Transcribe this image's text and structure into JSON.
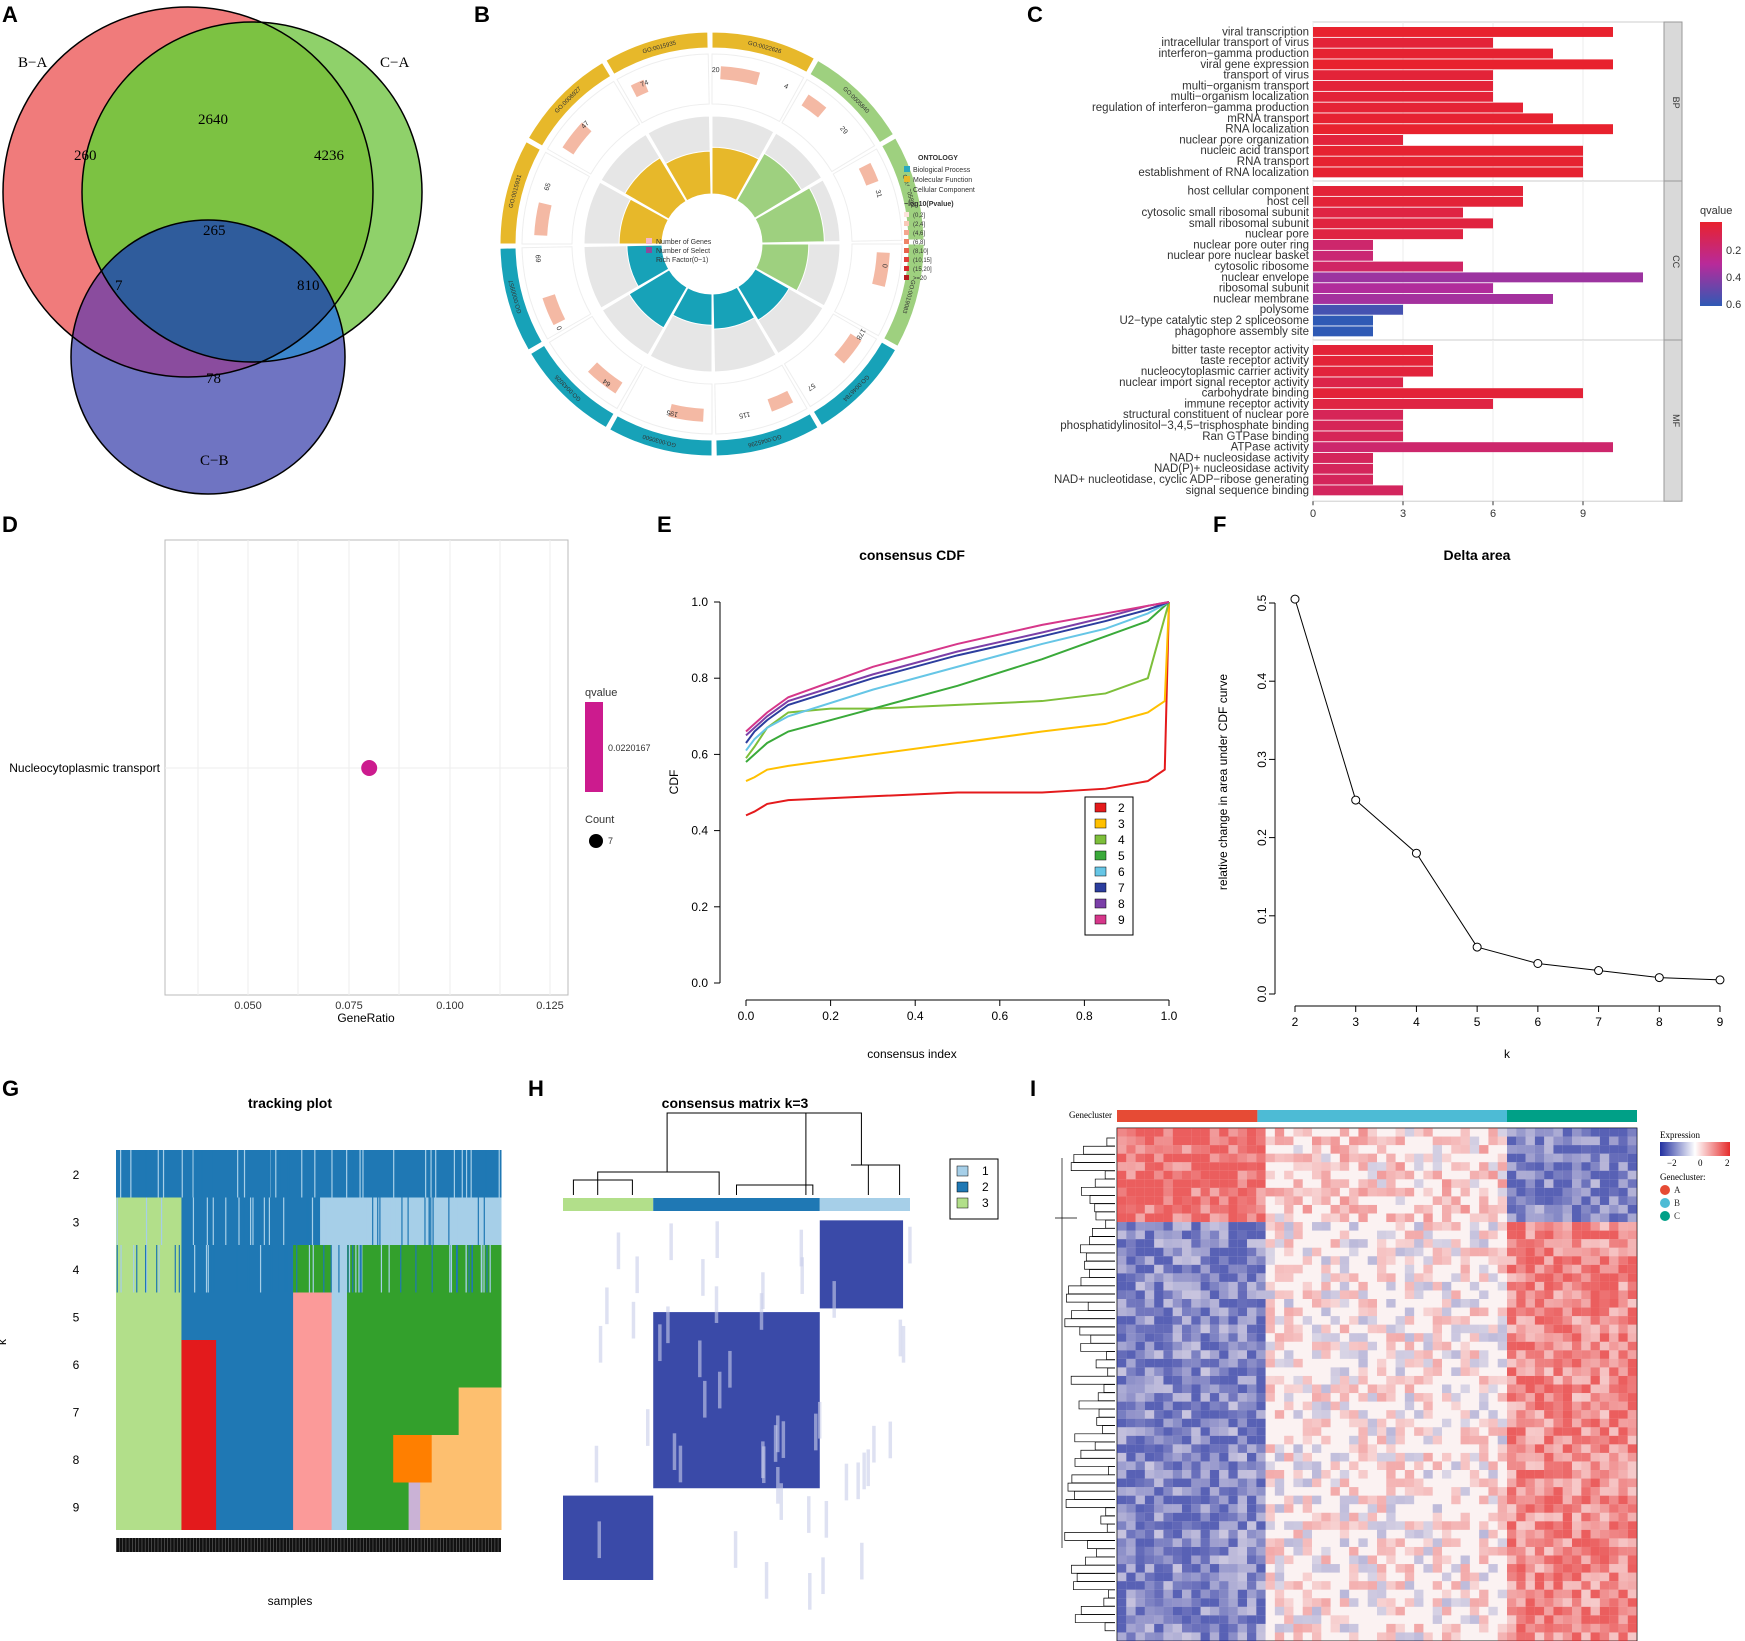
{
  "panels": {
    "A": "A",
    "B": "B",
    "C": "C",
    "D": "D",
    "E": "E",
    "F": "F",
    "G": "G",
    "H": "H",
    "I": "I"
  },
  "colors": {
    "red": "#f07b7b",
    "green": "#8fd16a",
    "blue": "#6f74c2"
  },
  "chart_data": [
    {
      "panel": "A",
      "type": "venn",
      "sets": [
        {
          "name": "B−A"
        },
        {
          "name": "C−A"
        },
        {
          "name": "C−B"
        }
      ],
      "regions": {
        "only_BA": "260",
        "only_CA": "4236",
        "only_CB": "78",
        "BA_CA": "2640",
        "BA_CB": "7",
        "CA_CB": "810",
        "all": "265"
      }
    },
    {
      "panel": "B",
      "type": "circular-go",
      "legend_title": "ONTOLOGY",
      "ontology": [
        "Biological Process",
        "Molecular Function",
        "Cellular Component"
      ],
      "pvalue_title": "−log10(Pvalue)",
      "pvalue_bins": [
        "(0,2]",
        "(2,4]",
        "(4,6]",
        "(6,8]",
        "(8,10]",
        "(10,15]",
        "(15,20]",
        ">=20"
      ],
      "center_legend": [
        "Number of Genes",
        "Number of Select",
        "Rich Factor(0~1)"
      ],
      "go_terms": [
        "GO:0015935",
        "GO:0022626",
        "GO:0005840",
        "GO:0005881",
        "GO:0019083",
        "GO:0046784",
        "GO:0045296",
        "GO:0030500",
        "GO:0043026",
        "GO:0000957",
        "GO:0015931",
        "GO:0006927"
      ],
      "counts": [
        "74",
        "20",
        "4",
        "29",
        "31",
        "0",
        "178",
        "57",
        "115",
        "195",
        "64",
        "0",
        "69",
        "65",
        "47"
      ]
    },
    {
      "panel": "C",
      "type": "bar",
      "orientation": "horizontal",
      "groups": [
        {
          "name": "BP",
          "terms": [
            "viral transcription",
            "intracellular transport of virus",
            "interferon−gamma production",
            "viral gene expression",
            "transport of virus",
            "multi−organism transport",
            "multi−organism localization",
            "regulation of interferon−gamma production",
            "mRNA transport",
            "RNA localization",
            "nuclear pore organization",
            "nucleic acid transport",
            "RNA transport",
            "establishment of RNA localization"
          ],
          "values": [
            10,
            6,
            8,
            10,
            6,
            6,
            6,
            7,
            8,
            10,
            3,
            9,
            9,
            9
          ],
          "qvalues": [
            0.02,
            0.05,
            0.03,
            0.02,
            0.05,
            0.05,
            0.05,
            0.04,
            0.03,
            0.02,
            0.06,
            0.03,
            0.03,
            0.03
          ]
        },
        {
          "name": "CC",
          "terms": [
            "host cellular component",
            "host cell",
            "cytosolic small ribosomal subunit",
            "small ribosomal subunit",
            "nuclear pore",
            "nuclear pore outer ring",
            "nuclear pore nuclear basket",
            "cytosolic ribosome",
            "nuclear envelope",
            "ribosomal subunit",
            "nuclear membrane",
            "polysome",
            "U2−type catalytic step 2 spliceosome",
            "phagophore assembly site"
          ],
          "values": [
            7,
            7,
            5,
            6,
            5,
            2,
            2,
            5,
            11,
            6,
            8,
            3,
            2,
            2
          ],
          "qvalues": [
            0.05,
            0.05,
            0.08,
            0.07,
            0.08,
            0.2,
            0.22,
            0.18,
            0.4,
            0.35,
            0.38,
            0.6,
            0.65,
            0.65
          ]
        },
        {
          "name": "MF",
          "terms": [
            "bitter taste receptor activity",
            "taste receptor activity",
            "nucleocytoplasmic carrier activity",
            "nuclear import signal receptor activity",
            "carbohydrate binding",
            "immune receptor activity",
            "structural constituent of nuclear pore",
            "phosphatidylinositol−3,4,5−trisphosphate binding",
            "Ran GTPase binding",
            "ATPase activity",
            "NAD+ nucleosidase activity",
            "NAD(P)+ nucleosidase activity",
            "NAD+ nucleotidase, cyclic ADP−ribose generating",
            "signal sequence binding"
          ],
          "values": [
            4,
            4,
            4,
            3,
            9,
            6,
            3,
            3,
            3,
            10,
            2,
            2,
            2,
            3
          ],
          "qvalues": [
            0.05,
            0.05,
            0.06,
            0.1,
            0.05,
            0.08,
            0.14,
            0.14,
            0.14,
            0.2,
            0.15,
            0.15,
            0.15,
            0.16
          ]
        }
      ],
      "xticks": [
        "0",
        "3",
        "6",
        "9"
      ],
      "legend_title": "qvalue",
      "legend_ticks": [
        "0.2",
        "0.4",
        "0.6"
      ]
    },
    {
      "panel": "D",
      "type": "scatter",
      "term": "Nucleocytoplasmic transport",
      "x": [
        0.08
      ],
      "count": 7,
      "xlabel": "GeneRatio",
      "xticks": [
        "0.050",
        "0.075",
        "0.100",
        "0.125"
      ],
      "legend_qvalue_title": "qvalue",
      "legend_qvalue_value": "0.0220167",
      "legend_count_title": "Count",
      "legend_count_value": "7"
    },
    {
      "panel": "E",
      "type": "line",
      "title": "consensus CDF",
      "xlabel": "consensus index",
      "ylabel": "CDF",
      "xticks": [
        "0.0",
        "0.2",
        "0.4",
        "0.6",
        "0.8",
        "1.0"
      ],
      "yticks": [
        "0.0",
        "0.2",
        "0.4",
        "0.6",
        "0.8",
        "1.0"
      ],
      "series": [
        {
          "name": "2",
          "color": "#e41a1c",
          "x": [
            0,
            0.02,
            0.05,
            0.1,
            0.3,
            0.5,
            0.7,
            0.85,
            0.95,
            0.99,
            1.0
          ],
          "y": [
            0.44,
            0.45,
            0.47,
            0.48,
            0.49,
            0.5,
            0.5,
            0.51,
            0.53,
            0.56,
            1.0
          ]
        },
        {
          "name": "3",
          "color": "#ffc000",
          "x": [
            0,
            0.02,
            0.05,
            0.1,
            0.3,
            0.5,
            0.7,
            0.85,
            0.95,
            0.99,
            1.0
          ],
          "y": [
            0.53,
            0.54,
            0.56,
            0.57,
            0.6,
            0.63,
            0.66,
            0.68,
            0.71,
            0.74,
            1.0
          ]
        },
        {
          "name": "4",
          "color": "#7dbf3a",
          "x": [
            0,
            0.02,
            0.05,
            0.1,
            0.2,
            0.3,
            0.5,
            0.7,
            0.85,
            0.95,
            1.0
          ],
          "y": [
            0.59,
            0.62,
            0.67,
            0.71,
            0.72,
            0.72,
            0.73,
            0.74,
            0.76,
            0.8,
            1.0
          ]
        },
        {
          "name": "5",
          "color": "#3aaa3a",
          "x": [
            0,
            0.02,
            0.05,
            0.1,
            0.3,
            0.5,
            0.7,
            0.85,
            0.95,
            1.0
          ],
          "y": [
            0.58,
            0.6,
            0.63,
            0.66,
            0.72,
            0.78,
            0.85,
            0.91,
            0.95,
            1.0
          ]
        },
        {
          "name": "6",
          "color": "#66c6e6",
          "x": [
            0,
            0.02,
            0.05,
            0.1,
            0.3,
            0.5,
            0.7,
            0.85,
            0.95,
            1.0
          ],
          "y": [
            0.61,
            0.64,
            0.67,
            0.7,
            0.77,
            0.83,
            0.89,
            0.93,
            0.97,
            1.0
          ]
        },
        {
          "name": "7",
          "color": "#2c3e9e",
          "x": [
            0,
            0.02,
            0.05,
            0.1,
            0.3,
            0.5,
            0.7,
            0.85,
            0.95,
            1.0
          ],
          "y": [
            0.63,
            0.66,
            0.69,
            0.73,
            0.8,
            0.86,
            0.91,
            0.95,
            0.98,
            1.0
          ]
        },
        {
          "name": "8",
          "color": "#7b3fa8",
          "x": [
            0,
            0.02,
            0.05,
            0.1,
            0.3,
            0.5,
            0.7,
            0.85,
            0.95,
            1.0
          ],
          "y": [
            0.65,
            0.67,
            0.7,
            0.74,
            0.81,
            0.87,
            0.92,
            0.96,
            0.99,
            1.0
          ]
        },
        {
          "name": "9",
          "color": "#d6378a",
          "x": [
            0,
            0.02,
            0.05,
            0.1,
            0.3,
            0.5,
            0.7,
            0.85,
            0.95,
            1.0
          ],
          "y": [
            0.66,
            0.68,
            0.71,
            0.75,
            0.83,
            0.89,
            0.94,
            0.97,
            0.99,
            1.0
          ]
        }
      ]
    },
    {
      "panel": "F",
      "type": "line",
      "title": "Delta area",
      "xlabel": "k",
      "ylabel": "relative change in area under CDF curve",
      "x": [
        2,
        3,
        4,
        5,
        6,
        7,
        8,
        9
      ],
      "y": [
        0.505,
        0.248,
        0.18,
        0.06,
        0.039,
        0.03,
        0.021,
        0.018
      ],
      "xticks": [
        "2",
        "3",
        "4",
        "5",
        "6",
        "7",
        "8",
        "9"
      ],
      "yticks": [
        "0.0",
        "0.1",
        "0.2",
        "0.3",
        "0.4",
        "0.5"
      ]
    },
    {
      "panel": "G",
      "type": "heatmap",
      "title": "tracking plot",
      "xlabel": "samples",
      "ylabel": "k",
      "rows": [
        "2",
        "3",
        "4",
        "5",
        "6",
        "7",
        "8",
        "9"
      ]
    },
    {
      "panel": "H",
      "type": "heatmap",
      "title": "consensus matrix k=3",
      "legend": [
        "1",
        "2",
        "3"
      ],
      "legend_colors": [
        "#a6cfe8",
        "#1f78b4",
        "#b2df8a"
      ]
    },
    {
      "panel": "I",
      "type": "heatmap",
      "annotation_label": "Genecluster",
      "legend_title": "Expression",
      "legend_ticks": [
        "−2",
        "0",
        "2"
      ],
      "cluster_legend_title": "Genecluster:",
      "clusters": [
        {
          "name": "A",
          "color": "#e64b35"
        },
        {
          "name": "B",
          "color": "#4dbbd5"
        },
        {
          "name": "C",
          "color": "#00a087"
        }
      ]
    }
  ]
}
